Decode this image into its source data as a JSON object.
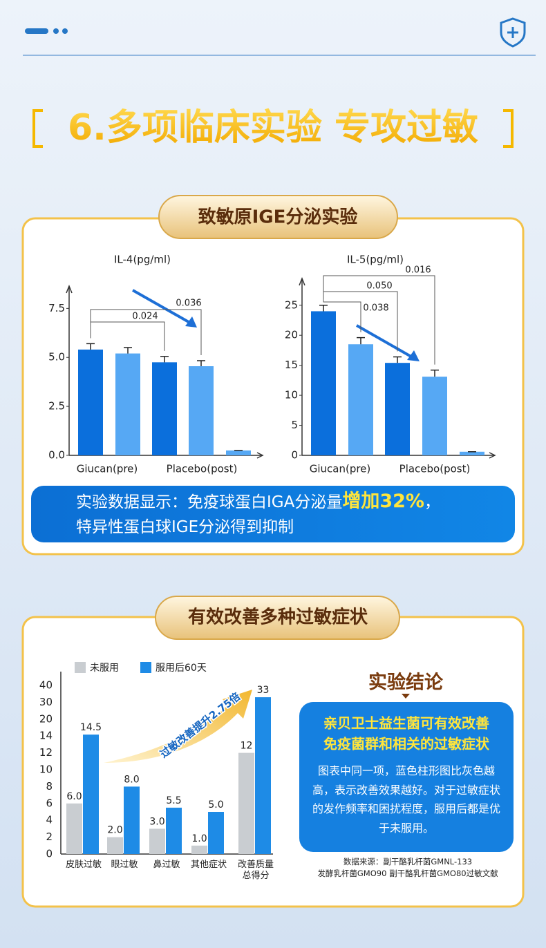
{
  "header": {
    "title": "6.多项临床实验 专攻过敏"
  },
  "section1": {
    "title": "致敏原IGE分泌实验",
    "banner": {
      "line1_before": "实验数据显示：免疫球蛋白IGA分泌量",
      "highlight": "增加32%",
      "line1_after": "，",
      "line2": "特异性蛋白球IGE分泌得到抑制"
    }
  },
  "chart_data": [
    {
      "type": "bar",
      "title": "IL-4(pg/ml)",
      "categories": [
        null,
        null,
        null,
        null,
        null
      ],
      "group_labels": [
        "Giucan(pre)",
        "Placebo(post)"
      ],
      "values": [
        5.4,
        5.2,
        4.75,
        4.55,
        0.25
      ],
      "errors": [
        0.3,
        0.3,
        0.3,
        0.28,
        0
      ],
      "colors": [
        "#0b6fdc",
        "#56a8f4",
        "#0b6fdc",
        "#56a8f4",
        "#56a8f4"
      ],
      "ylim": [
        0,
        8.5
      ],
      "yticks": [
        {
          "value": 0,
          "label": "0.0"
        },
        2.5,
        {
          "value": 5,
          "label": "5.0"
        },
        7.5
      ],
      "annotations": [
        "0.024",
        "0.036"
      ]
    },
    {
      "type": "bar",
      "title": "IL-5(pg/ml)",
      "categories": [
        null,
        null,
        null,
        null,
        null
      ],
      "group_labels": [
        "Giucan(pre)",
        "Placebo(post)"
      ],
      "values": [
        24,
        18.5,
        15.4,
        13.1,
        0.6
      ],
      "errors": [
        1,
        1.1,
        1,
        1.1,
        0
      ],
      "colors": [
        "#0b6fdc",
        "#56a8f4",
        "#0b6fdc",
        "#56a8f4",
        "#56a8f4"
      ],
      "ylim": [
        0,
        29
      ],
      "yticks": [
        0,
        5,
        10,
        15,
        20,
        25
      ],
      "annotations": [
        "0.016",
        "0.050",
        "0.038"
      ]
    },
    {
      "type": "grouped-bar",
      "categories": [
        "皮肤过敏",
        "眼过敏",
        "鼻过敏",
        "其他症状",
        "改善质量\n总得分"
      ],
      "series": [
        {
          "name": "未服用",
          "color": "#c9cdd1",
          "values": [
            6,
            2,
            3,
            1,
            12
          ],
          "value_labels": [
            "6.0",
            "2.0",
            "3.0",
            "1.0",
            "12"
          ]
        },
        {
          "name": "服用后60天",
          "color": "#1e8be6",
          "values": [
            14.5,
            8,
            5.5,
            5,
            33
          ],
          "value_labels": [
            "14.5",
            "8.0",
            "5.5",
            "5.0",
            "33"
          ]
        }
      ],
      "ylim": [
        0,
        40
      ],
      "yticks": [
        0,
        2,
        4,
        6,
        8,
        10,
        12,
        14,
        20,
        30,
        40
      ],
      "annotation": "过敏改善提升2.75倍"
    }
  ],
  "section2": {
    "title": "有效改善多种过敏症状",
    "conclusion": {
      "title": "实验结论",
      "heading": [
        "亲贝卫士益生菌可有效改善",
        "免疫菌群和相关的过敏症状"
      ],
      "body": "图表中同一项，蓝色柱形图比灰色越高，表示改善效果越好。对于过敏症状的发作频率和困扰程度，服用后都是优于未服用。",
      "source": [
        "数据来源：副干酪乳杆菌GMNL-133",
        "发酵乳杆菌GMO90 副干酪乳杆菌GMO80过敏文献"
      ]
    }
  }
}
